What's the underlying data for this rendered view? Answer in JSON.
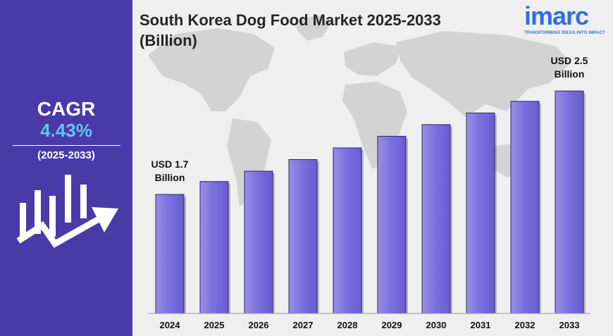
{
  "title_line1": "South Korea Dog Food Market 2025-2033",
  "title_line2": "(Billion)",
  "logo": {
    "brand": "imarc",
    "tagline": "TRANSFORMING IDEAS INTO IMPACT"
  },
  "cagr": {
    "label": "CAGR",
    "value": "4.43%",
    "period": "(2025-2033)"
  },
  "icons": [
    "growth-chart-icon",
    "world-map"
  ],
  "colors": {
    "panel": "#4a3aa8",
    "bar": "#7b6ede",
    "cagr_value": "#5fc8f0",
    "logo": "#2f6fe0"
  },
  "chart_data": {
    "type": "bar",
    "categories": [
      "2024",
      "2025",
      "2026",
      "2027",
      "2028",
      "2029",
      "2030",
      "2031",
      "2032",
      "2033"
    ],
    "values": [
      1.7,
      1.8,
      1.88,
      1.97,
      2.06,
      2.15,
      2.24,
      2.33,
      2.42,
      2.5
    ],
    "ylim": [
      0.78,
      2.55
    ],
    "annotations": [
      {
        "category": "2024",
        "line1": "USD 1.7",
        "line2": "Billion"
      },
      {
        "category": "2033",
        "line1": "USD 2.5",
        "line2": "Billion"
      }
    ]
  }
}
